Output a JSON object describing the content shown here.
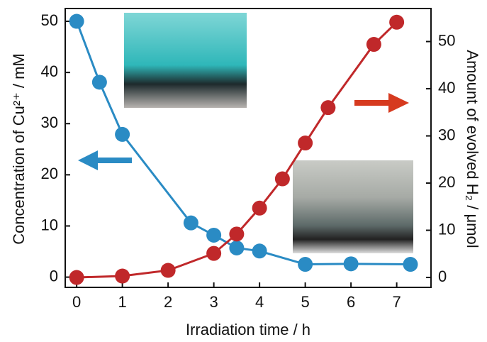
{
  "chart_data": {
    "type": "line",
    "xlabel": "Irradiation time / h",
    "ylabel": "Concentration of Cu²⁺ / mM",
    "y2label": "Amount of evolved H₂ / μmol",
    "xlim": [
      -0.25,
      7.75
    ],
    "xticks": [
      0,
      1,
      2,
      3,
      4,
      5,
      6,
      7
    ],
    "ylim": [
      -2,
      52.5
    ],
    "yticks": [
      0,
      10,
      20,
      30,
      40,
      50
    ],
    "y2lim": [
      -2.1,
      57
    ],
    "y2ticks": [
      0,
      10,
      20,
      30,
      40,
      50
    ],
    "series": [
      {
        "color": "#2a8bc4",
        "axis": "y",
        "x": [
          0,
          0.5,
          1,
          2.5,
          3,
          3.5,
          4,
          5,
          6,
          7.3
        ],
        "values": [
          50,
          38.1,
          27.9,
          10.6,
          8.2,
          5.7,
          5.1,
          2.5,
          2.6,
          2.5
        ]
      },
      {
        "color": "#c0282a",
        "axis": "y2",
        "x": [
          0,
          1,
          2,
          3,
          3.5,
          4,
          4.5,
          5,
          5.5,
          6.5,
          7
        ],
        "values": [
          0,
          0.3,
          1.5,
          5.1,
          9.2,
          14.7,
          20.9,
          28.5,
          36.0,
          49.4,
          54.1
        ]
      }
    ]
  }
}
